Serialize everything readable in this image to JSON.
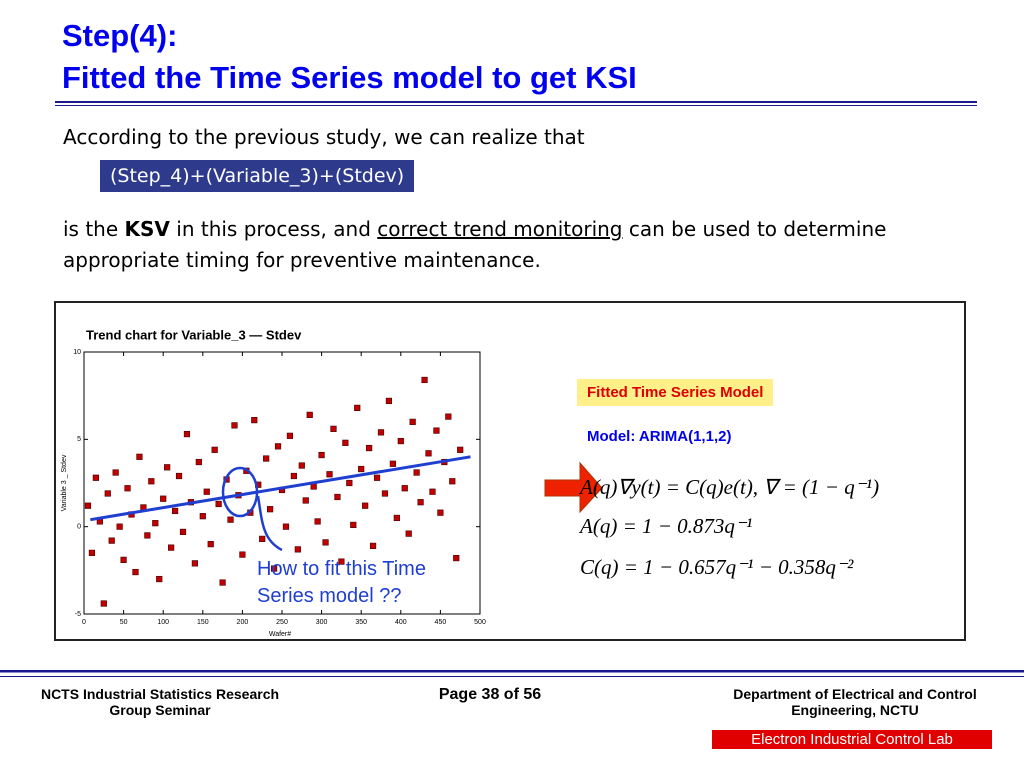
{
  "header": {
    "title_line1": "Step(4):",
    "title_line2": "Fitted the Time Series model to get KSI"
  },
  "body": {
    "intro": "According to the previous study, we can realize that",
    "formula_box": "(Step_4)+(Variable_3)+(Stdev)",
    "parts": [
      "is the ",
      "KSV",
      " in this process, and ",
      "correct trend monitoring",
      " can be used to determine appropriate timing for preventive maintenance."
    ]
  },
  "chart_data": {
    "type": "scatter",
    "title": "Trend chart for Variable_3 — Stdev",
    "xlabel": "Wafer#",
    "ylabel": "Variable 3 _ Stdev",
    "xlim": [
      0,
      500
    ],
    "ylim": [
      -5,
      10
    ],
    "xticks": [
      0,
      50,
      100,
      150,
      200,
      250,
      300,
      350,
      400,
      450,
      500
    ],
    "yticks": [
      -5,
      0,
      5,
      10
    ],
    "series": [
      {
        "name": "Stdev",
        "color": "#c00000",
        "x": [
          5,
          10,
          15,
          20,
          25,
          30,
          35,
          40,
          45,
          50,
          55,
          60,
          65,
          70,
          75,
          80,
          85,
          90,
          95,
          100,
          105,
          110,
          115,
          120,
          125,
          130,
          135,
          140,
          145,
          150,
          155,
          160,
          165,
          170,
          175,
          180,
          185,
          190,
          195,
          200,
          205,
          210,
          215,
          220,
          225,
          230,
          235,
          240,
          245,
          250,
          255,
          260,
          265,
          270,
          275,
          280,
          285,
          290,
          295,
          300,
          305,
          310,
          315,
          320,
          325,
          330,
          335,
          340,
          345,
          350,
          355,
          360,
          365,
          370,
          375,
          380,
          385,
          390,
          395,
          400,
          405,
          410,
          415,
          420,
          425,
          430,
          435,
          440,
          445,
          450,
          455,
          460,
          465,
          470,
          475
        ],
        "values": [
          1.2,
          -1.5,
          2.8,
          0.3,
          -4.4,
          1.9,
          -0.8,
          3.1,
          0.0,
          -1.9,
          2.2,
          0.7,
          -2.6,
          4.0,
          1.1,
          -0.5,
          2.6,
          0.2,
          -3.0,
          1.6,
          3.4,
          -1.2,
          0.9,
          2.9,
          -0.3,
          5.3,
          1.4,
          -2.1,
          3.7,
          0.6,
          2.0,
          -1.0,
          4.4,
          1.3,
          -3.2,
          2.7,
          0.4,
          5.8,
          1.8,
          -1.6,
          3.2,
          0.8,
          6.1,
          2.4,
          -0.7,
          3.9,
          1.0,
          -2.4,
          4.6,
          2.1,
          0.0,
          5.2,
          2.9,
          -1.3,
          3.5,
          1.5,
          6.4,
          2.3,
          0.3,
          4.1,
          -0.9,
          3.0,
          5.6,
          1.7,
          -2.0,
          4.8,
          2.5,
          0.1,
          6.8,
          3.3,
          1.2,
          4.5,
          -1.1,
          2.8,
          5.4,
          1.9,
          7.2,
          3.6,
          0.5,
          4.9,
          2.2,
          -0.4,
          6.0,
          3.1,
          1.4,
          8.4,
          4.2,
          2.0,
          5.5,
          0.8,
          3.7,
          6.3,
          2.6,
          -1.8,
          4.4
        ]
      }
    ],
    "trend_line": {
      "x": [
        8,
        488
      ],
      "y": [
        0.4,
        4.0
      ],
      "color": "#1f3fd0"
    },
    "annotation": "How to fit this Time Series model ??"
  },
  "right_panel": {
    "box": "Fitted Time Series Model",
    "model": "Model: ARIMA(1,1,2)",
    "equations": [
      "A(q)∇y(t) = C(q)e(t),  ∇ = (1 − q⁻¹)",
      "A(q) = 1 − 0.873q⁻¹",
      "C(q) = 1 − 0.657q⁻¹ − 0.358q⁻²"
    ]
  },
  "footer": {
    "left": "NCTS Industrial Statistics Research Group Seminar",
    "center": "Page 38 of 56",
    "right": "Department of Electrical and Control Engineering, NCTU",
    "lab": "Electron Industrial Control Lab"
  }
}
